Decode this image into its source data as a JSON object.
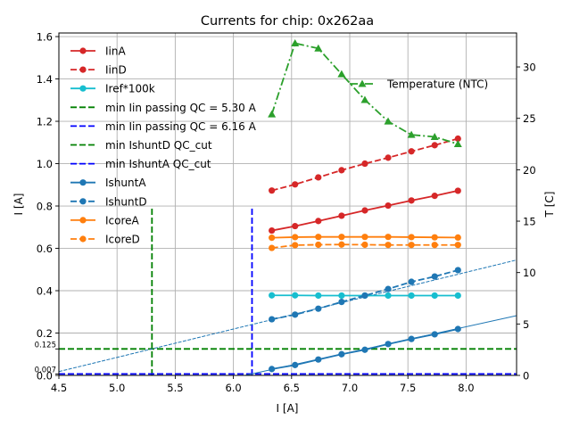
{
  "chart_data": {
    "type": "line",
    "title": "Currents for chip: 0x262aa",
    "xlabel": "I [A]",
    "ylabel": "I [A]",
    "y2label": "T [C]",
    "xlim": [
      4.5,
      8.434
    ],
    "ylim": [
      0.0,
      1.617
    ],
    "y2lim": [
      0.0,
      33.3
    ],
    "grid": true,
    "xticks": [
      4.5,
      5.0,
      5.5,
      6.0,
      6.5,
      7.0,
      7.5,
      8.0
    ],
    "xtick_labels": [
      "4.5",
      "5.0",
      "5.5",
      "6.0",
      "6.5",
      "7.0",
      "7.5",
      "8.0"
    ],
    "yticks": [
      0.0,
      0.2,
      0.4,
      0.6,
      0.8,
      1.0,
      1.2,
      1.4,
      1.6
    ],
    "ytick_labels": [
      "0.0",
      "0.2",
      "0.4",
      "0.6",
      "0.8",
      "1.0",
      "1.2",
      "1.4",
      "1.6"
    ],
    "extra_yticks": [
      0.125,
      0.007
    ],
    "extra_ytick_labels": [
      "0.125",
      "0.007"
    ],
    "y2ticks": [
      0,
      5,
      10,
      15,
      20,
      25,
      30
    ],
    "y2tick_labels": [
      "0",
      "5",
      "10",
      "15",
      "20",
      "25",
      "30"
    ],
    "x": [
      6.33,
      6.53,
      6.73,
      6.93,
      7.13,
      7.33,
      7.53,
      7.73,
      7.93
    ],
    "series": [
      {
        "name": "IinA",
        "color": "#d62728",
        "style": "solid",
        "marker": "circle",
        "axis": "left",
        "values": [
          0.684,
          0.705,
          0.729,
          0.754,
          0.779,
          0.802,
          0.826,
          0.848,
          0.872
        ]
      },
      {
        "name": "IinD",
        "color": "#d62728",
        "style": "dashed",
        "marker": "circle",
        "axis": "left",
        "values": [
          0.873,
          0.902,
          0.935,
          0.969,
          1.0,
          1.028,
          1.058,
          1.087,
          1.118
        ]
      },
      {
        "name": "Iref*100k",
        "color": "#17becf",
        "style": "solid",
        "marker": "circle",
        "axis": "left",
        "values": [
          0.378,
          0.378,
          0.377,
          0.377,
          0.377,
          0.377,
          0.377,
          0.377,
          0.377
        ]
      },
      {
        "name": "IshuntA",
        "color": "#1f77b4",
        "style": "solid",
        "marker": "circle",
        "axis": "left",
        "values": [
          0.03,
          0.049,
          0.075,
          0.1,
          0.121,
          0.148,
          0.172,
          0.194,
          0.219
        ]
      },
      {
        "name": "IshuntD",
        "color": "#1f77b4",
        "style": "dashed",
        "marker": "circle",
        "axis": "left",
        "values": [
          0.265,
          0.287,
          0.315,
          0.347,
          0.377,
          0.408,
          0.442,
          0.467,
          0.497
        ]
      },
      {
        "name": "IcoreA",
        "color": "#ff7f0e",
        "style": "solid",
        "marker": "circle",
        "axis": "left",
        "values": [
          0.65,
          0.653,
          0.654,
          0.654,
          0.654,
          0.654,
          0.653,
          0.652,
          0.651
        ]
      },
      {
        "name": "IcoreD",
        "color": "#ff7f0e",
        "style": "dashed",
        "marker": "circle",
        "axis": "left",
        "values": [
          0.602,
          0.615,
          0.617,
          0.618,
          0.617,
          0.616,
          0.616,
          0.616,
          0.616
        ]
      },
      {
        "name": "Temperature (NTC)",
        "color": "#2ca02c",
        "style": "dashdot",
        "marker": "triangle",
        "axis": "right",
        "values": [
          25.4,
          32.3,
          31.8,
          29.3,
          26.8,
          24.7,
          23.4,
          23.2,
          22.5
        ]
      }
    ],
    "fit_lines": [
      {
        "name": "IshuntD fit",
        "color": "#1f77b4",
        "style": "dashed-thin",
        "x": [
          4.5,
          8.434
        ],
        "values": [
          0.018,
          0.545
        ]
      },
      {
        "name": "IshuntA fit",
        "color": "#1f77b4",
        "style": "solid-thin",
        "x": [
          6.1,
          8.434
        ],
        "values": [
          0.0,
          0.282
        ]
      }
    ],
    "reference_lines": [
      {
        "name": "min Iin passing QC = 5.30 A",
        "orientation": "vertical",
        "color": "#008000",
        "x": 5.3,
        "y_range": [
          0.0,
          0.8
        ]
      },
      {
        "name": "min Iin passing QC = 6.16 A",
        "orientation": "vertical",
        "color": "#0000ff",
        "x": 6.16,
        "y_range": [
          0.0,
          0.8
        ]
      },
      {
        "name": "min IshuntD QC_cut",
        "orientation": "horizontal",
        "color": "#008000",
        "y": 0.125
      },
      {
        "name": "min IshuntA QC_cut",
        "orientation": "horizontal",
        "color": "#0000ff",
        "y": 0.007
      }
    ],
    "legend": {
      "placement": "upper-left",
      "entries": [
        {
          "label": "IinA",
          "color": "#d62728",
          "style": "solid",
          "marker": "circle"
        },
        {
          "label": "IinD",
          "color": "#d62728",
          "style": "dashed",
          "marker": "circle"
        },
        {
          "label": "Iref*100k",
          "color": "#17becf",
          "style": "solid",
          "marker": "circle"
        },
        {
          "label": "min Iin passing QC = 5.30 A",
          "color": "#008000",
          "style": "dashed",
          "marker": "none"
        },
        {
          "label": "min Iin passing QC = 6.16 A",
          "color": "#0000ff",
          "style": "dashed",
          "marker": "none"
        },
        {
          "label": "min IshuntD QC_cut",
          "color": "#008000",
          "style": "dashed",
          "marker": "none"
        },
        {
          "label": "min IshuntA QC_cut",
          "color": "#0000ff",
          "style": "dashed",
          "marker": "none"
        },
        {
          "label": "IshuntA",
          "color": "#1f77b4",
          "style": "solid",
          "marker": "circle"
        },
        {
          "label": "IshuntD",
          "color": "#1f77b4",
          "style": "dashed",
          "marker": "circle"
        },
        {
          "label": "IcoreA",
          "color": "#ff7f0e",
          "style": "solid",
          "marker": "circle"
        },
        {
          "label": "IcoreD",
          "color": "#ff7f0e",
          "style": "dashed",
          "marker": "circle"
        }
      ]
    },
    "legend2": {
      "placement": "upper-right",
      "entries": [
        {
          "label": "Temperature (NTC)",
          "color": "#2ca02c",
          "style": "dashdot",
          "marker": "triangle"
        }
      ]
    }
  }
}
